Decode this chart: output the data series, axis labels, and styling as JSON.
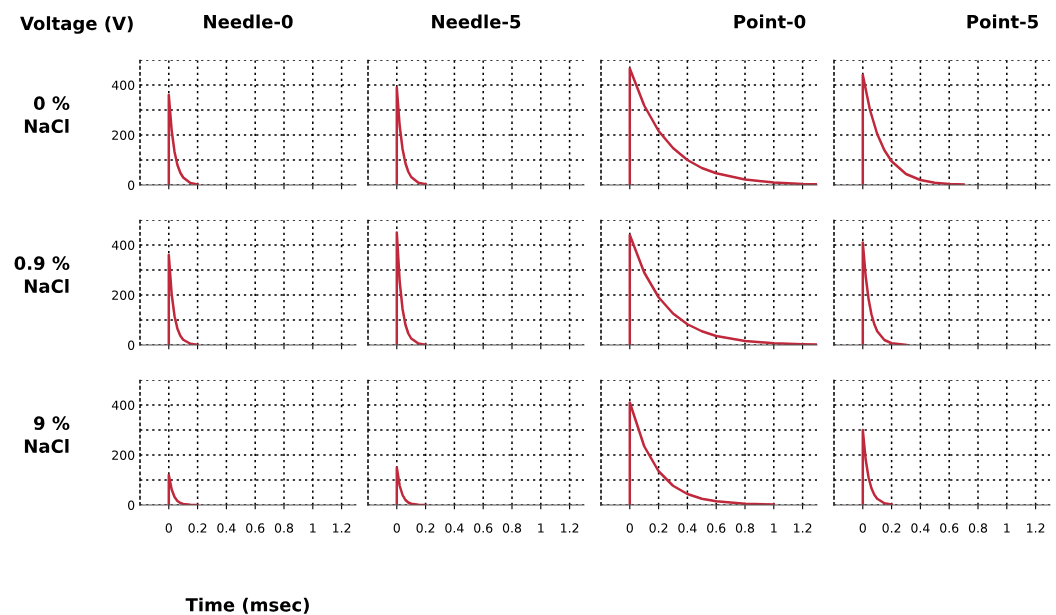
{
  "chart_data": [
    {
      "type": "line",
      "title": "Needle-0",
      "ylabel": "0 %\nNaCl",
      "annotations": [
        "Voltage (V)"
      ],
      "x": [
        0,
        0,
        0.02,
        0.04,
        0.06,
        0.08,
        0.1,
        0.15,
        0.2
      ],
      "series": [
        {
          "color": "#c0283c",
          "values": [
            0,
            360,
            218,
            132,
            80,
            49,
            30,
            8,
            2
          ]
        }
      ],
      "xlim": [
        -0.2,
        1.3
      ],
      "ylim": [
        0,
        500
      ],
      "xticks": [
        0,
        0.2,
        0.4,
        0.6,
        0.8,
        1,
        1.2
      ],
      "yticks": [
        0,
        {
          "value": 100,
          "label": null
        },
        200,
        {
          "value": 300,
          "label": null
        },
        400,
        {
          "value": 500,
          "label": null
        }
      ],
      "grid": true,
      "line_style": "solid",
      "tick_labels": "y"
    },
    {
      "type": "line",
      "title": "Needle-5",
      "x": [
        0,
        0,
        0.02,
        0.04,
        0.06,
        0.08,
        0.1,
        0.15,
        0.2
      ],
      "series": [
        {
          "color": "#c0283c",
          "values": [
            0,
            390,
            237,
            144,
            87,
            53,
            32,
            9,
            3
          ]
        }
      ],
      "xlim": [
        -0.2,
        1.3
      ],
      "ylim": [
        0,
        500
      ],
      "xticks": [
        0,
        0.2,
        0.4,
        0.6,
        0.8,
        1,
        1.2
      ],
      "yticks": [
        0,
        {
          "value": 100,
          "label": null
        },
        200,
        {
          "value": 300,
          "label": null
        },
        400,
        {
          "value": 500,
          "label": null
        }
      ],
      "grid": true,
      "line_style": "solid",
      "tick_labels": false
    },
    {
      "type": "line",
      "title": "Point-0",
      "x": [
        0,
        0,
        0.1,
        0.2,
        0.3,
        0.4,
        0.5,
        0.6,
        0.8,
        1.0,
        1.2,
        1.3
      ],
      "series": [
        {
          "color": "#c0283c",
          "values": [
            0,
            466,
            318,
            216,
            148,
            100,
            68,
            47,
            22,
            10,
            4,
            3
          ]
        }
      ],
      "xlim": [
        -0.2,
        1.3
      ],
      "ylim": [
        0,
        500
      ],
      "xticks": [
        0,
        0.2,
        0.4,
        0.6,
        0.8,
        1,
        1.2
      ],
      "yticks": [
        0,
        {
          "value": 100,
          "label": null
        },
        200,
        {
          "value": 300,
          "label": null
        },
        400,
        {
          "value": 500,
          "label": null
        }
      ],
      "grid": true,
      "line_style": "solid",
      "tick_labels": false
    },
    {
      "type": "line",
      "title": "Point-5",
      "x": [
        0,
        0,
        0.05,
        0.1,
        0.15,
        0.2,
        0.3,
        0.4,
        0.5,
        0.6,
        0.7
      ],
      "series": [
        {
          "color": "#c0283c",
          "values": [
            0,
            440,
            300,
            204,
            139,
            95,
            44,
            20,
            9,
            4,
            2
          ]
        }
      ],
      "xlim": [
        -0.2,
        1.3
      ],
      "ylim": [
        0,
        500
      ],
      "xticks": [
        0,
        0.2,
        0.4,
        0.6,
        0.8,
        1,
        1.2
      ],
      "yticks": [
        0,
        {
          "value": 100,
          "label": null
        },
        200,
        {
          "value": 300,
          "label": null
        },
        400,
        {
          "value": 500,
          "label": null
        }
      ],
      "grid": true,
      "line_style": "solid",
      "tick_labels": false
    },
    {
      "type": "line",
      "ylabel": "0.9 %\nNaCl",
      "x": [
        0,
        0,
        0.02,
        0.04,
        0.06,
        0.08,
        0.1,
        0.15,
        0.2
      ],
      "series": [
        {
          "color": "#c0283c",
          "values": [
            0,
            360,
            203,
            115,
            65,
            37,
            21,
            5,
            1
          ]
        }
      ],
      "xlim": [
        -0.2,
        1.3
      ],
      "ylim": [
        0,
        500
      ],
      "xticks": [
        0,
        0.2,
        0.4,
        0.6,
        0.8,
        1,
        1.2
      ],
      "yticks": [
        0,
        {
          "value": 100,
          "label": null
        },
        200,
        {
          "value": 300,
          "label": null
        },
        400,
        {
          "value": 500,
          "label": null
        }
      ],
      "grid": true,
      "line_style": "solid",
      "tick_labels": "y"
    },
    {
      "type": "line",
      "x": [
        0,
        0,
        0.02,
        0.04,
        0.06,
        0.08,
        0.1,
        0.15,
        0.2
      ],
      "series": [
        {
          "color": "#c0283c",
          "values": [
            0,
            450,
            254,
            144,
            81,
            46,
            26,
            6,
            1
          ]
        }
      ],
      "xlim": [
        -0.2,
        1.3
      ],
      "ylim": [
        0,
        500
      ],
      "xticks": [
        0,
        0.2,
        0.4,
        0.6,
        0.8,
        1,
        1.2
      ],
      "yticks": [
        0,
        {
          "value": 100,
          "label": null
        },
        200,
        {
          "value": 300,
          "label": null
        },
        400,
        {
          "value": 500,
          "label": null
        }
      ],
      "grid": true,
      "line_style": "solid",
      "tick_labels": false
    },
    {
      "type": "line",
      "x": [
        0,
        0,
        0.1,
        0.2,
        0.3,
        0.4,
        0.5,
        0.6,
        0.8,
        1.0,
        1.2,
        1.3
      ],
      "series": [
        {
          "color": "#c0283c",
          "values": [
            0,
            440,
            290,
            191,
            126,
            83,
            55,
            36,
            16,
            7,
            3,
            2
          ]
        }
      ],
      "xlim": [
        -0.2,
        1.3
      ],
      "ylim": [
        0,
        500
      ],
      "xticks": [
        0,
        0.2,
        0.4,
        0.6,
        0.8,
        1,
        1.2
      ],
      "yticks": [
        0,
        {
          "value": 100,
          "label": null
        },
        200,
        {
          "value": 300,
          "label": null
        },
        400,
        {
          "value": 500,
          "label": null
        }
      ],
      "grid": true,
      "line_style": "solid",
      "tick_labels": false
    },
    {
      "type": "line",
      "x": [
        0,
        0,
        0.02,
        0.04,
        0.06,
        0.08,
        0.1,
        0.15,
        0.2,
        0.3
      ],
      "series": [
        {
          "color": "#c0283c",
          "values": [
            0,
            410,
            275,
            184,
            123,
            83,
            55,
            20,
            7,
            1
          ]
        }
      ],
      "xlim": [
        -0.2,
        1.3
      ],
      "ylim": [
        0,
        500
      ],
      "xticks": [
        0,
        0.2,
        0.4,
        0.6,
        0.8,
        1,
        1.2
      ],
      "yticks": [
        0,
        {
          "value": 100,
          "label": null
        },
        200,
        {
          "value": 300,
          "label": null
        },
        400,
        {
          "value": 500,
          "label": null
        }
      ],
      "grid": true,
      "line_style": "solid",
      "tick_labels": false
    },
    {
      "type": "line",
      "ylabel": "9 %\nNaCl",
      "xlabel": "Time (msec)",
      "x": [
        0,
        0,
        0.02,
        0.04,
        0.06,
        0.08,
        0.1,
        0.15,
        0.2
      ],
      "series": [
        {
          "color": "#c0283c",
          "values": [
            0,
            120,
            62,
            32,
            16,
            8,
            4,
            1,
            0
          ]
        }
      ],
      "xlim": [
        -0.2,
        1.3
      ],
      "ylim": [
        0,
        500
      ],
      "xticks": [
        0,
        0.2,
        0.4,
        0.6,
        0.8,
        1,
        1.2
      ],
      "yticks": [
        0,
        {
          "value": 100,
          "label": null
        },
        200,
        {
          "value": 300,
          "label": null
        },
        400,
        {
          "value": 500,
          "label": null
        }
      ],
      "grid": true,
      "line_style": "solid"
    },
    {
      "type": "line",
      "x": [
        0,
        0,
        0.02,
        0.04,
        0.06,
        0.08,
        0.1,
        0.15,
        0.2
      ],
      "series": [
        {
          "color": "#c0283c",
          "values": [
            0,
            150,
            77,
            40,
            20,
            10,
            5,
            1,
            0
          ]
        }
      ],
      "xlim": [
        -0.2,
        1.3
      ],
      "ylim": [
        0,
        500
      ],
      "xticks": [
        0,
        0.2,
        0.4,
        0.6,
        0.8,
        1,
        1.2
      ],
      "yticks": [
        0,
        {
          "value": 100,
          "label": null
        },
        200,
        {
          "value": 300,
          "label": null
        },
        400,
        {
          "value": 500,
          "label": null
        }
      ],
      "grid": true,
      "line_style": "solid",
      "tick_labels": "x"
    },
    {
      "type": "line",
      "x": [
        0,
        0,
        0.1,
        0.2,
        0.3,
        0.4,
        0.5,
        0.6,
        0.8,
        1.0
      ],
      "series": [
        {
          "color": "#c0283c",
          "values": [
            0,
            410,
            235,
            135,
            77,
            44,
            25,
            15,
            5,
            2
          ]
        }
      ],
      "xlim": [
        -0.2,
        1.3
      ],
      "ylim": [
        0,
        500
      ],
      "xticks": [
        0,
        0.2,
        0.4,
        0.6,
        0.8,
        1,
        1.2
      ],
      "yticks": [
        0,
        {
          "value": 100,
          "label": null
        },
        200,
        {
          "value": 300,
          "label": null
        },
        400,
        {
          "value": 500,
          "label": null
        }
      ],
      "grid": true,
      "line_style": "solid",
      "tick_labels": "x"
    },
    {
      "type": "line",
      "x": [
        0,
        0,
        0.02,
        0.04,
        0.06,
        0.08,
        0.1,
        0.15,
        0.2
      ],
      "series": [
        {
          "color": "#c0283c",
          "values": [
            0,
            300,
            182,
            110,
            67,
            41,
            25,
            7,
            2
          ]
        }
      ],
      "xlim": [
        -0.2,
        1.3
      ],
      "ylim": [
        0,
        500
      ],
      "xticks": [
        0,
        0.2,
        0.4,
        0.6,
        0.8,
        1,
        1.2
      ],
      "yticks": [
        0,
        {
          "value": 100,
          "label": null
        },
        200,
        {
          "value": 300,
          "label": null
        },
        400,
        {
          "value": 500,
          "label": null
        }
      ],
      "grid": true,
      "line_style": "solid",
      "tick_labels": "x"
    }
  ]
}
